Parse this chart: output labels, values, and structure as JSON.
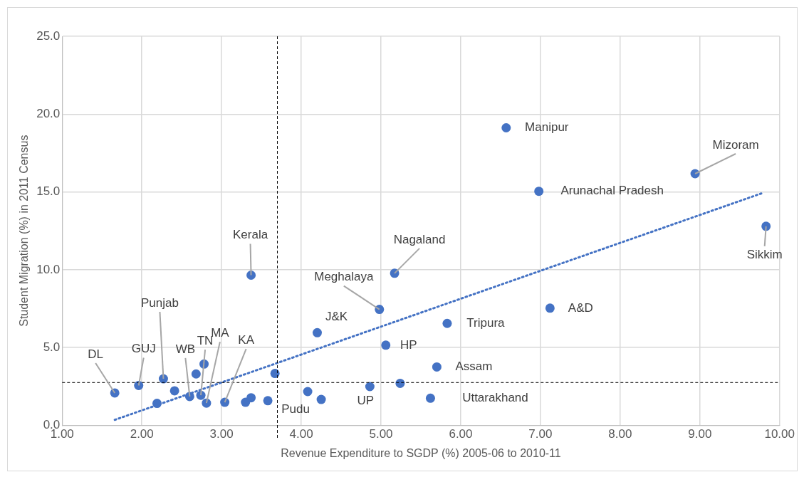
{
  "chart_data": {
    "type": "scatter",
    "xlabel": "Revenue Expenditure to SGDP (%) 2005-06 to 2010-11",
    "ylabel": "Student Migration (%) in 2011 Census",
    "xlim": [
      1,
      10
    ],
    "ylim": [
      0,
      25
    ],
    "xticks": [
      {
        "value": 1,
        "label": "1.00"
      },
      {
        "value": 2,
        "label": "2.00"
      },
      {
        "value": 3,
        "label": "3.00"
      },
      {
        "value": 4,
        "label": "4.00"
      },
      {
        "value": 5,
        "label": "5.00"
      },
      {
        "value": 6,
        "label": "6.00"
      },
      {
        "value": 7,
        "label": "7.00"
      },
      {
        "value": 8,
        "label": "8.00"
      },
      {
        "value": 9,
        "label": "9.00"
      },
      {
        "value": 10,
        "label": "10.00"
      }
    ],
    "yticks": [
      {
        "value": 0,
        "label": "0.0"
      },
      {
        "value": 5,
        "label": "5.0"
      },
      {
        "value": 10,
        "label": "10.0"
      },
      {
        "value": 15,
        "label": "15.0"
      },
      {
        "value": 20,
        "label": "20.0"
      },
      {
        "value": 25,
        "label": "25.0"
      }
    ],
    "grid": true,
    "legend": false,
    "marker": "circle",
    "series": [
      {
        "type": "scatter",
        "color": "#4472c4",
        "x": [
          1.66,
          1.96,
          2.19,
          2.27,
          2.41,
          2.68,
          2.78,
          2.6,
          2.74,
          2.81,
          3.04,
          3.3,
          3.37,
          3.58,
          3.67,
          4.08,
          4.25,
          4.2,
          4.98,
          5.06,
          4.86,
          5.24,
          5.83,
          5.7,
          5.62,
          5.17,
          6.57,
          6.98,
          8.94,
          9.83,
          7.12,
          3.37
        ],
        "values": [
          2.08,
          2.56,
          1.41,
          2.99,
          2.22,
          3.3,
          3.94,
          1.85,
          1.93,
          1.43,
          1.48,
          1.48,
          1.77,
          1.58,
          3.33,
          2.17,
          1.66,
          5.95,
          7.45,
          5.15,
          2.49,
          2.7,
          6.55,
          3.75,
          1.74,
          9.77,
          19.12,
          15.04,
          16.17,
          12.79,
          7.53,
          9.65
        ]
      },
      {
        "type": "line",
        "color": "#4472c4",
        "line_style": "dotted",
        "marker": "none",
        "x": [
          1.66,
          9.77
        ],
        "values": [
          0.35,
          14.9
        ]
      }
    ],
    "ref_lines": [
      {
        "axis": "x",
        "value": 3.7,
        "color": "#000000",
        "line_style": "dashed"
      },
      {
        "axis": "y",
        "value": 2.75,
        "color": "#000000",
        "line_style": "dashed"
      }
    ],
    "annotations": [
      {
        "text": "DL",
        "x": 1.66,
        "y": 2.08
      },
      {
        "text": "GUJ",
        "x": 1.96,
        "y": 2.56
      },
      {
        "text": "Punjab",
        "x": 2.27,
        "y": 2.99
      },
      {
        "text": "WB",
        "x": 2.6,
        "y": 1.85
      },
      {
        "text": "TN",
        "x": 2.74,
        "y": 1.93
      },
      {
        "text": "MA",
        "x": 2.81,
        "y": 1.43
      },
      {
        "text": "KA",
        "x": 3.04,
        "y": 1.48
      },
      {
        "text": "Kerala",
        "x": 3.37,
        "y": 9.65
      },
      {
        "text": "J&K",
        "x": 4.2,
        "y": 5.95
      },
      {
        "text": "Meghalaya",
        "x": 4.98,
        "y": 7.45
      },
      {
        "text": "Nagaland",
        "x": 5.17,
        "y": 9.77
      },
      {
        "text": "HP",
        "x": 5.06,
        "y": 5.15
      },
      {
        "text": "Pudu",
        "x": 4.25,
        "y": 1.66
      },
      {
        "text": "UP",
        "x": 4.86,
        "y": 2.49
      },
      {
        "text": "Tripura",
        "x": 5.83,
        "y": 6.55
      },
      {
        "text": "Assam",
        "x": 5.7,
        "y": 3.75
      },
      {
        "text": "Uttarakhand",
        "x": 5.62,
        "y": 1.74
      },
      {
        "text": "Manipur",
        "x": 6.57,
        "y": 19.12
      },
      {
        "text": "Arunachal Pradesh",
        "x": 6.98,
        "y": 15.04
      },
      {
        "text": "Mizoram",
        "x": 8.94,
        "y": 16.17
      },
      {
        "text": "Sikkim",
        "x": 9.83,
        "y": 12.79
      },
      {
        "text": "A&D",
        "x": 7.12,
        "y": 7.53
      }
    ]
  }
}
